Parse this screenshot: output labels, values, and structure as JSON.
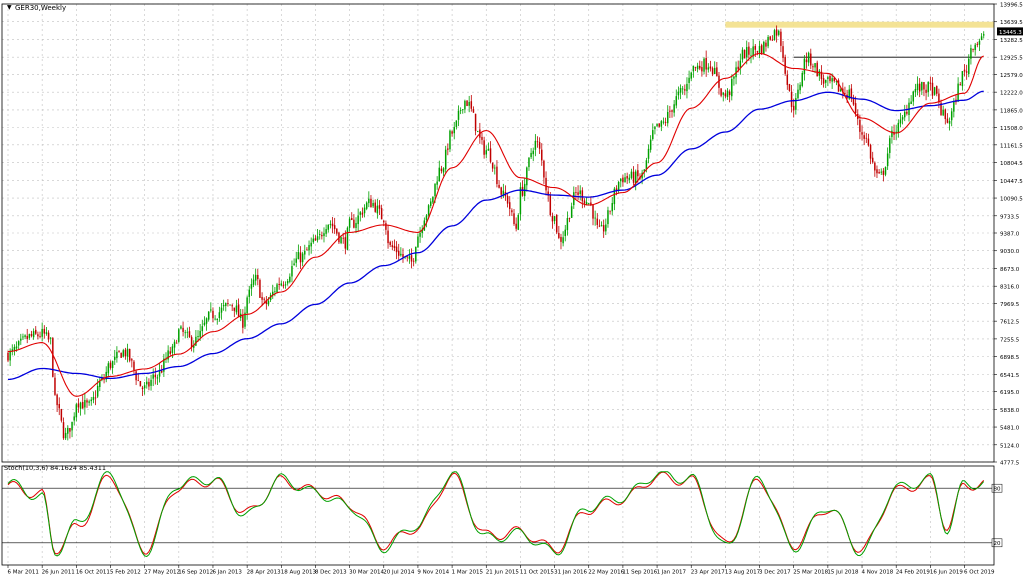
{
  "header": {
    "title": "GER30,Weekly",
    "stoch_label": "Stoch(10,3,6) 84.1624 85.4311"
  },
  "colors": {
    "background": "#ffffff",
    "grid": "#c0c0c0",
    "up_candle": "#00a000",
    "down_candle": "#c00000",
    "ma_fast": "#e00000",
    "ma_slow": "#0000dd",
    "stoch_main": "#00a000",
    "stoch_signal": "#e00000",
    "resistance_zone": "#f3e08a",
    "last_price_box": "#000000"
  },
  "chart_data": [
    {
      "type": "candlestick",
      "name": "price",
      "price_labels": [
        "13996.5",
        "13639.5",
        "13282.5",
        "12925.5",
        "12579.0",
        "12222.0",
        "11865.0",
        "11508.0",
        "11161.5",
        "10804.5",
        "10447.5",
        "10090.5",
        "9733.5",
        "9387.0",
        "9030.0",
        "8673.0",
        "8316.0",
        "7969.5",
        "7612.5",
        "7255.5",
        "6898.5",
        "6541.5",
        "6195.0",
        "5838.0",
        "5481.0",
        "5124.0",
        "4777.5"
      ],
      "ylim": [
        4777.5,
        13996.5
      ],
      "x_labels": [
        "6 Mar 2011",
        "26 Jun 2011",
        "16 Oct 2011",
        "5 Feb 2012",
        "27 May 2012",
        "16 Sep 2012",
        "6 Jan 2013",
        "28 Apr 2013",
        "18 Aug 2013",
        "8 Dec 2013",
        "30 Mar 2014",
        "20 Jul 2014",
        "9 Nov 2014",
        "1 Mar 2015",
        "21 Jun 2015",
        "11 Oct 2015",
        "31 Jan 2016",
        "22 May 2016",
        "11 Sep 2016",
        "1 Jan 2017",
        "23 Apr 2017",
        "13 Aug 2017",
        "3 Dec 2017",
        "25 Mar 2018",
        "15 Jul 2018",
        "4 Nov 2018",
        "24 Feb 2019",
        "16 Jun 2019",
        "6 Oct 2019"
      ],
      "last_price": "13445.3",
      "resistance_zone": [
        13520,
        13639.5
      ],
      "horizontal_level": 12925.5,
      "close_path": [
        [
          "6 Mar 2011",
          6950
        ],
        [
          "22 May 2011",
          7300
        ],
        [
          "26 Jun 2011",
          7350
        ],
        [
          "24 Jul 2011",
          7200
        ],
        [
          "7 Aug 2011",
          6000
        ],
        [
          "11 Sep 2011",
          5300
        ],
        [
          "2 Oct 2011",
          5550
        ],
        [
          "16 Oct 2011",
          6000
        ],
        [
          "27 Nov 2011",
          5900
        ],
        [
          "8 Jan 2012",
          6400
        ],
        [
          "5 Feb 2012",
          6750
        ],
        [
          "18 Mar 2012",
          7000
        ],
        [
          "27 May 2012",
          6250
        ],
        [
          "1 Jul 2012",
          6500
        ],
        [
          "26 Aug 2012",
          7000
        ],
        [
          "16 Sep 2012",
          7400
        ],
        [
          "4 Nov 2012",
          7200
        ],
        [
          "6 Jan 2013",
          7750
        ],
        [
          "10 Mar 2013",
          7950
        ],
        [
          "14 Apr 2013",
          7600
        ],
        [
          "28 Apr 2013",
          8100
        ],
        [
          "26 May 2013",
          8450
        ],
        [
          "23 Jun 2013",
          7950
        ],
        [
          "18 Aug 2013",
          8400
        ],
        [
          "20 Oct 2013",
          8900
        ],
        [
          "8 Dec 2013",
          9200
        ],
        [
          "19 Jan 2014",
          9600
        ],
        [
          "16 Mar 2014",
          9200
        ],
        [
          "30 Mar 2014",
          9550
        ],
        [
          "8 Jun 2014",
          10000
        ],
        [
          "20 Jul 2014",
          9700
        ],
        [
          "10 Aug 2014",
          9100
        ],
        [
          "19 Oct 2014",
          8800
        ],
        [
          "9 Nov 2014",
          9350
        ],
        [
          "7 Dec 2014",
          9800
        ],
        [
          "25 Jan 2015",
          10700
        ],
        [
          "1 Mar 2015",
          11400
        ],
        [
          "12 Apr 2015",
          12050
        ],
        [
          "21 Jun 2015",
          11050
        ],
        [
          "23 Aug 2015",
          10100
        ],
        [
          "27 Sep 2015",
          9500
        ],
        [
          "11 Oct 2015",
          10200
        ],
        [
          "29 Nov 2015",
          11200
        ],
        [
          "31 Jan 2016",
          9700
        ],
        [
          "14 Feb 2016",
          9250
        ],
        [
          "17 Apr 2016",
          10200
        ],
        [
          "22 May 2016",
          10000
        ],
        [
          "26 Jun 2016",
          9400
        ],
        [
          "11 Sep 2016",
          10500
        ],
        [
          "6 Nov 2016",
          10500
        ],
        [
          "1 Jan 2017",
          11500
        ],
        [
          "2 Apr 2017",
          12250
        ],
        [
          "23 Apr 2017",
          12700
        ],
        [
          "18 Jun 2017",
          12800
        ],
        [
          "13 Aug 2017",
          12150
        ],
        [
          "15 Oct 2017",
          13000
        ],
        [
          "3 Dec 2017",
          13100
        ],
        [
          "28 Jan 2018",
          13450
        ],
        [
          "25 Mar 2018",
          11950
        ],
        [
          "6 May 2018",
          12900
        ],
        [
          "15 Jul 2018",
          12400
        ],
        [
          "23 Sep 2018",
          12200
        ],
        [
          "4 Nov 2018",
          11400
        ],
        [
          "30 Dec 2018",
          10500
        ],
        [
          "24 Feb 2019",
          11500
        ],
        [
          "5 May 2019",
          12300
        ],
        [
          "16 Jun 2019",
          12300
        ],
        [
          "11 Aug 2019",
          11650
        ],
        [
          "6 Oct 2019",
          12600
        ],
        [
          "3 Nov 2019",
          13200
        ],
        [
          "8 Dec 2019",
          13300
        ]
      ],
      "ma_fast_path": [
        [
          "6 Mar 2011",
          7000
        ],
        [
          "26 Jun 2011",
          7180
        ],
        [
          "16 Oct 2011",
          6100
        ],
        [
          "5 Feb 2012",
          6500
        ],
        [
          "27 May 2012",
          6650
        ],
        [
          "16 Sep 2012",
          6950
        ],
        [
          "6 Jan 2013",
          7400
        ],
        [
          "28 Apr 2013",
          7750
        ],
        [
          "18 Aug 2013",
          8200
        ],
        [
          "8 Dec 2013",
          8900
        ],
        [
          "30 Mar 2014",
          9400
        ],
        [
          "20 Jul 2014",
          9550
        ],
        [
          "9 Nov 2014",
          9400
        ],
        [
          "1 Mar 2015",
          10700
        ],
        [
          "21 Jun 2015",
          11450
        ],
        [
          "11 Oct 2015",
          10500
        ],
        [
          "31 Jan 2016",
          10300
        ],
        [
          "22 May 2016",
          9950
        ],
        [
          "11 Sep 2016",
          10200
        ],
        [
          "1 Jan 2017",
          10800
        ],
        [
          "23 Apr 2017",
          11900
        ],
        [
          "13 Aug 2017",
          12500
        ],
        [
          "3 Dec 2017",
          13000
        ],
        [
          "25 Mar 2018",
          12700
        ],
        [
          "15 Jul 2018",
          12600
        ],
        [
          "4 Nov 2018",
          11700
        ],
        [
          "24 Feb 2019",
          11400
        ],
        [
          "16 Jun 2019",
          12000
        ],
        [
          "6 Oct 2019",
          12200
        ],
        [
          "8 Dec 2019",
          12950
        ]
      ],
      "ma_slow_path": [
        [
          "6 Mar 2011",
          6440
        ],
        [
          "26 Jun 2011",
          6660
        ],
        [
          "16 Oct 2011",
          6560
        ],
        [
          "5 Feb 2012",
          6460
        ],
        [
          "27 May 2012",
          6560
        ],
        [
          "16 Sep 2012",
          6700
        ],
        [
          "6 Jan 2013",
          6960
        ],
        [
          "28 Apr 2013",
          7260
        ],
        [
          "18 Aug 2013",
          7560
        ],
        [
          "8 Dec 2013",
          7950
        ],
        [
          "30 Mar 2014",
          8380
        ],
        [
          "20 Jul 2014",
          8730
        ],
        [
          "9 Nov 2014",
          8990
        ],
        [
          "1 Mar 2015",
          9530
        ],
        [
          "21 Jun 2015",
          10050
        ],
        [
          "11 Oct 2015",
          10250
        ],
        [
          "31 Jan 2016",
          10150
        ],
        [
          "22 May 2016",
          10110
        ],
        [
          "11 Sep 2016",
          10250
        ],
        [
          "1 Jan 2017",
          10550
        ],
        [
          "23 Apr 2017",
          11080
        ],
        [
          "13 Aug 2017",
          11420
        ],
        [
          "3 Dec 2017",
          11880
        ],
        [
          "25 Mar 2018",
          12050
        ],
        [
          "15 Jul 2018",
          12220
        ],
        [
          "4 Nov 2018",
          12080
        ],
        [
          "24 Feb 2019",
          11850
        ],
        [
          "16 Jun 2019",
          11950
        ],
        [
          "6 Oct 2019",
          12060
        ],
        [
          "8 Dec 2019",
          12240
        ]
      ]
    },
    {
      "type": "line",
      "name": "stochastic",
      "ylim": [
        0,
        100
      ],
      "levels": [
        80,
        20
      ],
      "level_labels": [
        "80",
        "20"
      ],
      "main_path": [
        [
          "6 Mar 2011",
          85
        ],
        [
          "26 Jun 2011",
          70
        ],
        [
          "7 Aug 2011",
          10
        ],
        [
          "16 Oct 2011",
          40
        ],
        [
          "5 Feb 2012",
          95
        ],
        [
          "27 May 2012",
          10
        ],
        [
          "16 Sep 2012",
          85
        ],
        [
          "6 Jan 2013",
          90
        ],
        [
          "28 Apr 2013",
          50
        ],
        [
          "18 Aug 2013",
          90
        ],
        [
          "8 Dec 2013",
          75
        ],
        [
          "30 Mar 2014",
          60
        ],
        [
          "20 Jul 2014",
          15
        ],
        [
          "9 Nov 2014",
          40
        ],
        [
          "1 Mar 2015",
          95
        ],
        [
          "21 Jun 2015",
          25
        ],
        [
          "11 Oct 2015",
          30
        ],
        [
          "31 Jan 2016",
          10
        ],
        [
          "22 May 2016",
          60
        ],
        [
          "11 Sep 2016",
          70
        ],
        [
          "1 Jan 2017",
          95
        ],
        [
          "23 Apr 2017",
          90
        ],
        [
          "13 Aug 2017",
          15
        ],
        [
          "3 Dec 2017",
          90
        ],
        [
          "25 Mar 2018",
          15
        ],
        [
          "15 Jul 2018",
          60
        ],
        [
          "4 Nov 2018",
          10
        ],
        [
          "24 Feb 2019",
          80
        ],
        [
          "16 Jun 2019",
          90
        ],
        [
          "11 Aug 2019",
          35
        ],
        [
          "6 Oct 2019",
          85
        ],
        [
          "8 Dec 2019",
          85
        ]
      ],
      "signal_path": [
        [
          "6 Mar 2011",
          82
        ],
        [
          "26 Jun 2011",
          73
        ],
        [
          "7 Aug 2011",
          13
        ],
        [
          "16 Oct 2011",
          36
        ],
        [
          "5 Feb 2012",
          92
        ],
        [
          "27 May 2012",
          13
        ],
        [
          "16 Sep 2012",
          82
        ],
        [
          "6 Jan 2013",
          88
        ],
        [
          "28 Apr 2013",
          53
        ],
        [
          "18 Aug 2013",
          88
        ],
        [
          "8 Dec 2013",
          77
        ],
        [
          "30 Mar 2014",
          62
        ],
        [
          "20 Jul 2014",
          18
        ],
        [
          "9 Nov 2014",
          37
        ],
        [
          "1 Mar 2015",
          92
        ],
        [
          "21 Jun 2015",
          28
        ],
        [
          "11 Oct 2015",
          32
        ],
        [
          "31 Jan 2016",
          13
        ],
        [
          "22 May 2016",
          57
        ],
        [
          "11 Sep 2016",
          68
        ],
        [
          "1 Jan 2017",
          92
        ],
        [
          "23 Apr 2017",
          88
        ],
        [
          "13 Aug 2017",
          18
        ],
        [
          "3 Dec 2017",
          88
        ],
        [
          "25 Mar 2018",
          18
        ],
        [
          "15 Jul 2018",
          58
        ],
        [
          "4 Nov 2018",
          13
        ],
        [
          "24 Feb 2019",
          77
        ],
        [
          "16 Jun 2019",
          88
        ],
        [
          "11 Aug 2019",
          38
        ],
        [
          "6 Oct 2019",
          83
        ],
        [
          "8 Dec 2019",
          85
        ]
      ]
    }
  ]
}
